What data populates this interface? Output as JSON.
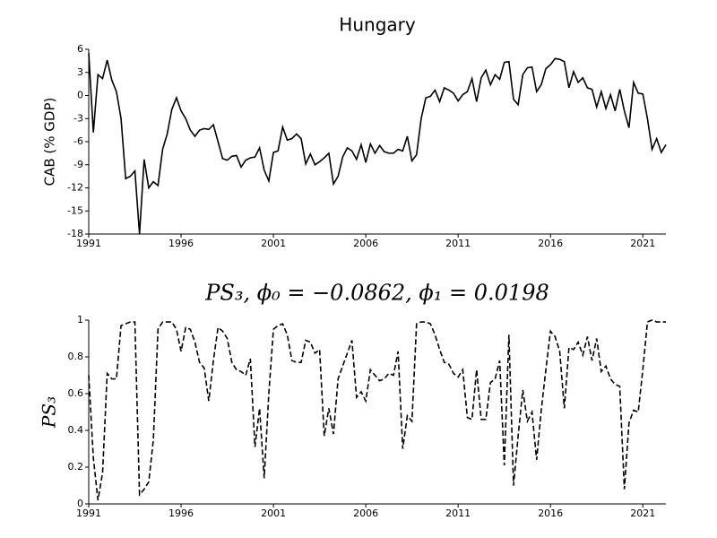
{
  "chart_data": [
    {
      "type": "line",
      "title": "Hungary",
      "ylabel": "CAB (% GDP)",
      "x": [
        1991,
        1991.25,
        1991.5,
        1991.75,
        1992,
        1992.25,
        1992.5,
        1992.75,
        1993,
        1993.25,
        1993.5,
        1993.75,
        1994,
        1994.25,
        1994.5,
        1994.75,
        1995,
        1995.25,
        1995.5,
        1995.75,
        1996,
        1996.25,
        1996.5,
        1996.75,
        1997,
        1997.25,
        1997.5,
        1997.75,
        1998,
        1998.25,
        1998.5,
        1998.75,
        1999,
        1999.25,
        1999.5,
        1999.75,
        2000,
        2000.25,
        2000.5,
        2000.75,
        2001,
        2001.25,
        2001.5,
        2001.75,
        2002,
        2002.25,
        2002.5,
        2002.75,
        2003,
        2003.25,
        2003.5,
        2003.75,
        2004,
        2004.25,
        2004.5,
        2004.75,
        2005,
        2005.25,
        2005.5,
        2005.75,
        2006,
        2006.25,
        2006.5,
        2006.75,
        2007,
        2007.25,
        2007.5,
        2007.75,
        2008,
        2008.25,
        2008.5,
        2008.75,
        2009,
        2009.25,
        2009.5,
        2009.75,
        2010,
        2010.25,
        2010.5,
        2010.75,
        2011,
        2011.25,
        2011.5,
        2011.75,
        2012,
        2012.25,
        2012.5,
        2012.75,
        2013,
        2013.25,
        2013.5,
        2013.75,
        2014,
        2014.25,
        2014.5,
        2014.75,
        2015,
        2015.25,
        2015.5,
        2015.75,
        2016,
        2016.25,
        2016.5,
        2016.75,
        2017,
        2017.25,
        2017.5,
        2017.75,
        2018,
        2018.25,
        2018.5,
        2018.75,
        2019,
        2019.25,
        2019.5,
        2019.75,
        2020,
        2020.25,
        2020.5,
        2020.75,
        2021,
        2021.25,
        2021.5,
        2021.75,
        2022,
        2022.25
      ],
      "series": [
        {
          "color": "#000000",
          "linestyle": "solid",
          "values": [
            5.5,
            -4.8,
            2.7,
            2.2,
            4.6,
            2,
            0.5,
            -3,
            -10.8,
            -10.5,
            -9.8,
            -18,
            -8.3,
            -12,
            -11.2,
            -11.7,
            -7,
            -5,
            -1.8,
            -0.3,
            -2,
            -3,
            -4.5,
            -5.3,
            -4.5,
            -4.3,
            -4.4,
            -3.8,
            -6,
            -8.2,
            -8.4,
            -7.9,
            -7.8,
            -9.3,
            -8.4,
            -8.1,
            -8,
            -6.8,
            -9.7,
            -11.1,
            -7.4,
            -7.2,
            -4.1,
            -5.8,
            -5.6,
            -5,
            -5.6,
            -8.9,
            -7.6,
            -9,
            -8.6,
            -8.1,
            -7.5,
            -11.5,
            -10.5,
            -8,
            -6.8,
            -7.2,
            -8.3,
            -6.4,
            -8.7,
            -6.3,
            -7.5,
            -6.5,
            -7.3,
            -7.5,
            -7.5,
            -7,
            -7.2,
            -5.3,
            -8.5,
            -7.7,
            -3,
            -0.3,
            -0.1,
            0.7,
            -0.8,
            1,
            0.7,
            0.3,
            -0.7,
            0.1,
            0.5,
            2.2,
            -0.8,
            2.3,
            3.3,
            1.4,
            2.7,
            2.1,
            4.3,
            4.4,
            -0.5,
            -1.2,
            2.7,
            3.6,
            3.7,
            0.5,
            1.4,
            3.5,
            4,
            4.8,
            4.7,
            4.4,
            1,
            3.1,
            1.7,
            2.3,
            1,
            0.8,
            -1.5,
            0.5,
            -1.7,
            0.1,
            -2,
            0.8,
            -2,
            -4.2,
            1.7,
            0.3,
            0.2,
            -3,
            -7,
            -5.6,
            -7.4,
            -6.4
          ]
        }
      ],
      "xlim": [
        1991,
        2022.25
      ],
      "xticks": [
        1991,
        1996,
        2001,
        2006,
        2011,
        2016,
        2021
      ],
      "ylim": [
        -18,
        6
      ],
      "yticks": [
        -18,
        -15,
        -12,
        -9,
        -6,
        -3,
        0,
        3,
        6
      ]
    },
    {
      "type": "line",
      "title": "PS₃, ϕ₀ = −0.0862, ϕ₁ = 0.0198",
      "ylabel": "PS₃",
      "x": [
        1991,
        1991.25,
        1991.5,
        1991.75,
        1992,
        1992.25,
        1992.5,
        1992.75,
        1993,
        1993.25,
        1993.5,
        1993.75,
        1994,
        1994.25,
        1994.5,
        1994.75,
        1995,
        1995.25,
        1995.5,
        1995.75,
        1996,
        1996.25,
        1996.5,
        1996.75,
        1997,
        1997.25,
        1997.5,
        1997.75,
        1998,
        1998.25,
        1998.5,
        1998.75,
        1999,
        1999.25,
        1999.5,
        1999.75,
        2000,
        2000.25,
        2000.5,
        2000.75,
        2001,
        2001.25,
        2001.5,
        2001.75,
        2002,
        2002.25,
        2002.5,
        2002.75,
        2003,
        2003.25,
        2003.5,
        2003.75,
        2004,
        2004.25,
        2004.5,
        2004.75,
        2005,
        2005.25,
        2005.5,
        2005.75,
        2006,
        2006.25,
        2006.5,
        2006.75,
        2007,
        2007.25,
        2007.5,
        2007.75,
        2008,
        2008.25,
        2008.5,
        2008.75,
        2009,
        2009.25,
        2009.5,
        2009.75,
        2010,
        2010.25,
        2010.5,
        2010.75,
        2011,
        2011.25,
        2011.5,
        2011.75,
        2012,
        2012.25,
        2012.5,
        2012.75,
        2013,
        2013.25,
        2013.5,
        2013.75,
        2014,
        2014.25,
        2014.5,
        2014.75,
        2015,
        2015.25,
        2015.5,
        2015.75,
        2016,
        2016.25,
        2016.5,
        2016.75,
        2017,
        2017.25,
        2017.5,
        2017.75,
        2018,
        2018.25,
        2018.5,
        2018.75,
        2019,
        2019.25,
        2019.5,
        2019.75,
        2020,
        2020.25,
        2020.5,
        2020.75,
        2021,
        2021.25,
        2021.5,
        2021.75,
        2022,
        2022.25
      ],
      "series": [
        {
          "color": "#000000",
          "linestyle": "dashed",
          "values": [
            0.7,
            0.25,
            0.02,
            0.17,
            0.71,
            0.68,
            0.68,
            0.97,
            0.98,
            0.99,
            0.99,
            0.05,
            0.08,
            0.12,
            0.35,
            0.95,
            0.99,
            0.99,
            0.99,
            0.95,
            0.83,
            0.96,
            0.95,
            0.88,
            0.77,
            0.74,
            0.56,
            0.78,
            0.96,
            0.94,
            0.9,
            0.77,
            0.73,
            0.72,
            0.7,
            0.79,
            0.31,
            0.52,
            0.14,
            0.6,
            0.95,
            0.97,
            0.98,
            0.92,
            0.78,
            0.77,
            0.77,
            0.89,
            0.88,
            0.82,
            0.84,
            0.37,
            0.52,
            0.38,
            0.68,
            0.75,
            0.82,
            0.89,
            0.58,
            0.61,
            0.56,
            0.73,
            0.7,
            0.67,
            0.68,
            0.71,
            0.7,
            0.83,
            0.3,
            0.48,
            0.45,
            0.98,
            0.99,
            0.99,
            0.98,
            0.92,
            0.84,
            0.77,
            0.76,
            0.71,
            0.69,
            0.73,
            0.47,
            0.46,
            0.73,
            0.46,
            0.46,
            0.66,
            0.68,
            0.78,
            0.21,
            0.92,
            0.1,
            0.37,
            0.62,
            0.45,
            0.5,
            0.24,
            0.51,
            0.73,
            0.94,
            0.91,
            0.83,
            0.52,
            0.85,
            0.84,
            0.88,
            0.81,
            0.91,
            0.78,
            0.9,
            0.72,
            0.75,
            0.68,
            0.65,
            0.64,
            0.08,
            0.44,
            0.51,
            0.5,
            0.73,
            0.99,
            1,
            0.99,
            0.99,
            0.99
          ]
        }
      ],
      "xlim": [
        1991,
        2022.25
      ],
      "xticks": [
        1991,
        1996,
        2001,
        2006,
        2011,
        2016,
        2021
      ],
      "ylim": [
        0,
        1
      ],
      "yticks": [
        0,
        0.2,
        0.4,
        0.6,
        0.8,
        1
      ]
    }
  ]
}
